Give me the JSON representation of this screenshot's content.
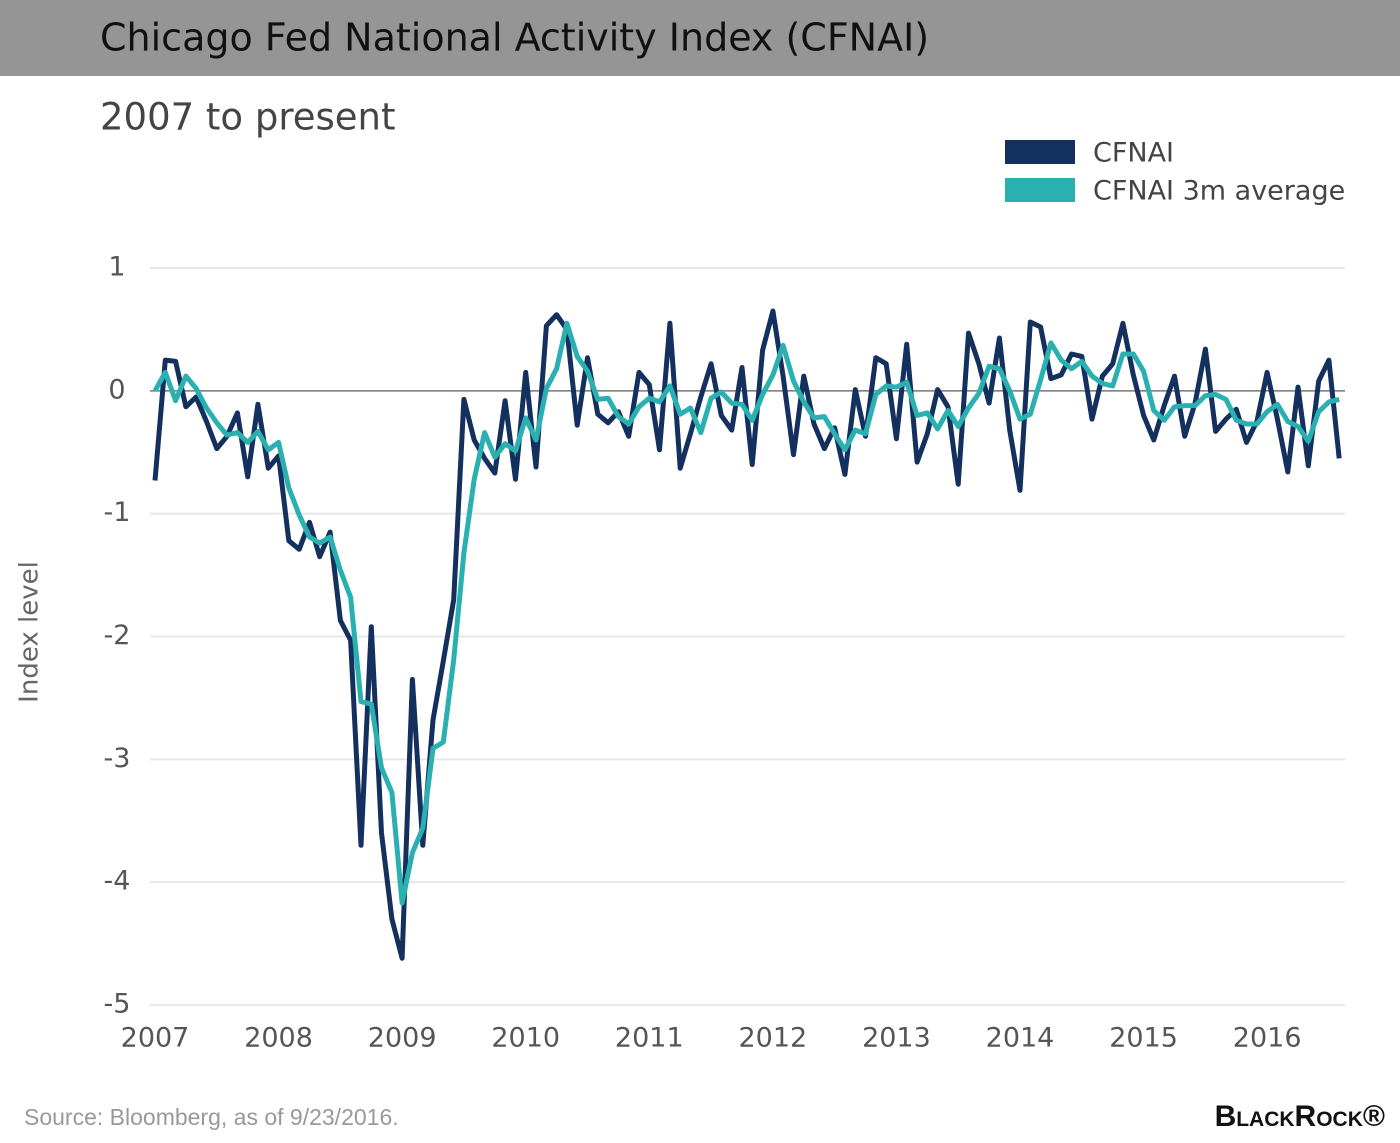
{
  "chart_data": {
    "type": "line",
    "title": "Chicago Fed National Activity Index (CFNAI)",
    "subtitle": "2007 to present",
    "y_label": "Index level",
    "source": "Source: Bloomberg, as of 9/23/2016.",
    "logo": "BlackRock®",
    "legend": "top-right",
    "grid": true,
    "xlim": [
      2007,
      2016.63
    ],
    "xticks": [
      2007,
      2008,
      2009,
      2010,
      2011,
      2012,
      2013,
      2014,
      2015,
      2016
    ],
    "ylim": [
      -5,
      1
    ],
    "yticks": [
      1,
      0,
      -1,
      -2,
      -3,
      -4,
      -5
    ],
    "x": [
      2007,
      2007.083,
      2007.167,
      2007.25,
      2007.333,
      2007.417,
      2007.5,
      2007.583,
      2007.667,
      2007.75,
      2007.833,
      2007.917,
      2008,
      2008.083,
      2008.167,
      2008.25,
      2008.333,
      2008.417,
      2008.5,
      2008.583,
      2008.667,
      2008.75,
      2008.833,
      2008.917,
      2009,
      2009.083,
      2009.167,
      2009.25,
      2009.333,
      2009.417,
      2009.5,
      2009.583,
      2009.667,
      2009.75,
      2009.833,
      2009.917,
      2010,
      2010.083,
      2010.167,
      2010.25,
      2010.333,
      2010.417,
      2010.5,
      2010.583,
      2010.667,
      2010.75,
      2010.833,
      2010.917,
      2011,
      2011.083,
      2011.167,
      2011.25,
      2011.333,
      2011.417,
      2011.5,
      2011.583,
      2011.667,
      2011.75,
      2011.833,
      2011.917,
      2012,
      2012.083,
      2012.167,
      2012.25,
      2012.333,
      2012.417,
      2012.5,
      2012.583,
      2012.667,
      2012.75,
      2012.833,
      2012.917,
      2013,
      2013.083,
      2013.167,
      2013.25,
      2013.333,
      2013.417,
      2013.5,
      2013.583,
      2013.667,
      2013.75,
      2013.833,
      2013.917,
      2014,
      2014.083,
      2014.167,
      2014.25,
      2014.333,
      2014.417,
      2014.5,
      2014.583,
      2014.667,
      2014.75,
      2014.833,
      2014.917,
      2015,
      2015.083,
      2015.167,
      2015.25,
      2015.333,
      2015.417,
      2015.5,
      2015.583,
      2015.667,
      2015.75,
      2015.833,
      2015.917,
      2016,
      2016.083,
      2016.167,
      2016.25,
      2016.333,
      2016.417,
      2016.5,
      2016.583
    ],
    "series": [
      {
        "name": "CFNAI",
        "color": "#14305e",
        "values": [
          -0.73,
          0.25,
          0.24,
          -0.13,
          -0.05,
          -0.25,
          -0.47,
          -0.37,
          -0.18,
          -0.7,
          -0.11,
          -0.63,
          -0.53,
          -1.22,
          -1.29,
          -1.07,
          -1.35,
          -1.15,
          -1.87,
          -2.03,
          -3.7,
          -1.92,
          -3.6,
          -4.3,
          -4.62,
          -2.35,
          -3.7,
          -2.68,
          -2.2,
          -1.7,
          -0.07,
          -0.4,
          -0.55,
          -0.67,
          -0.08,
          -0.72,
          0.15,
          -0.62,
          0.53,
          0.62,
          0.5,
          -0.28,
          0.27,
          -0.19,
          -0.26,
          -0.17,
          -0.37,
          0.15,
          0.05,
          -0.48,
          0.55,
          -0.63,
          -0.35,
          -0.05,
          0.22,
          -0.2,
          -0.32,
          0.19,
          -0.6,
          0.33,
          0.65,
          0.12,
          -0.52,
          0.12,
          -0.27,
          -0.47,
          -0.3,
          -0.68,
          0.01,
          -0.37,
          0.27,
          0.22,
          -0.39,
          0.38,
          -0.58,
          -0.35,
          0.01,
          -0.13,
          -0.76,
          0.47,
          0.22,
          -0.1,
          0.43,
          -0.32,
          -0.81,
          0.56,
          0.52,
          0.1,
          0.13,
          0.3,
          0.28,
          -0.23,
          0.12,
          0.22,
          0.55,
          0.13,
          -0.2,
          -0.4,
          -0.12,
          0.12,
          -0.37,
          -0.1,
          0.34,
          -0.33,
          -0.23,
          -0.15,
          -0.42,
          -0.25,
          0.15,
          -0.23,
          -0.66,
          0.03,
          -0.61,
          0.08,
          0.25,
          -0.55
        ]
      },
      {
        "name": "CFNAI 3m average",
        "color": "#2ab0b0",
        "values": [
          0.0,
          0.15,
          -0.08,
          0.12,
          0.02,
          -0.14,
          -0.26,
          -0.36,
          -0.34,
          -0.42,
          -0.33,
          -0.48,
          -0.42,
          -0.79,
          -1.01,
          -1.19,
          -1.24,
          -1.19,
          -1.46,
          -1.68,
          -2.53,
          -2.55,
          -3.07,
          -3.27,
          -4.17,
          -3.76,
          -3.56,
          -2.91,
          -2.86,
          -2.19,
          -1.32,
          -0.72,
          -0.34,
          -0.54,
          -0.43,
          -0.49,
          -0.22,
          -0.4,
          0.02,
          0.18,
          0.55,
          0.28,
          0.16,
          -0.07,
          -0.06,
          -0.21,
          -0.27,
          -0.13,
          -0.06,
          -0.09,
          0.04,
          -0.19,
          -0.14,
          -0.34,
          -0.06,
          -0.01,
          -0.1,
          -0.11,
          -0.24,
          -0.03,
          0.13,
          0.37,
          0.08,
          -0.09,
          -0.22,
          -0.21,
          -0.35,
          -0.48,
          -0.32,
          -0.35,
          -0.03,
          0.04,
          0.03,
          0.07,
          -0.2,
          -0.18,
          -0.31,
          -0.16,
          -0.29,
          -0.14,
          -0.02,
          0.2,
          0.18,
          0.0,
          -0.23,
          -0.19,
          0.09,
          0.39,
          0.25,
          0.18,
          0.24,
          0.12,
          0.06,
          0.04,
          0.3,
          0.3,
          0.16,
          -0.16,
          -0.24,
          -0.13,
          -0.12,
          -0.12,
          -0.04,
          -0.03,
          -0.07,
          -0.24,
          -0.27,
          -0.27,
          -0.17,
          -0.11,
          -0.25,
          -0.29,
          -0.41,
          -0.17,
          -0.09,
          -0.07
        ]
      }
    ]
  }
}
